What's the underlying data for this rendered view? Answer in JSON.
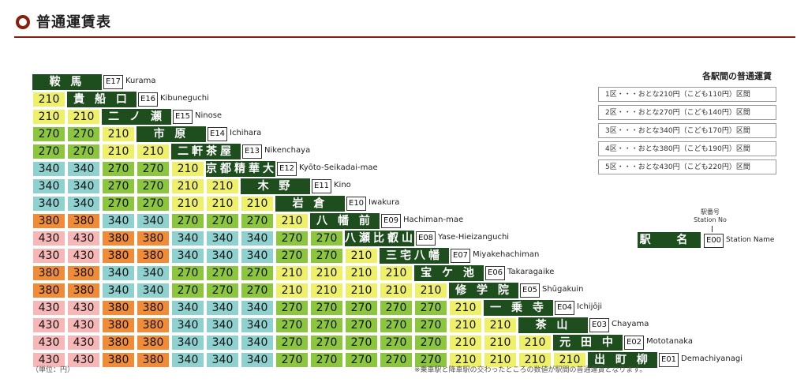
{
  "page": {
    "title": "普通運賃表"
  },
  "stations": [
    {
      "code": "E17",
      "name": "鞍 馬",
      "romaji": "Kurama"
    },
    {
      "code": "E16",
      "name": "貴 船 口",
      "romaji": "Kibuneguchi"
    },
    {
      "code": "E15",
      "name": "二 ノ 瀬",
      "romaji": "Ninose"
    },
    {
      "code": "E14",
      "name": "市 原",
      "romaji": "Ichihara"
    },
    {
      "code": "E13",
      "name": "二軒茶屋",
      "romaji": "Nikenchaya"
    },
    {
      "code": "E12",
      "name": "京都精華大前",
      "romaji": "Kyōto-Seikadai-mae"
    },
    {
      "code": "E11",
      "name": "木 野",
      "romaji": "Kino"
    },
    {
      "code": "E10",
      "name": "岩 倉",
      "romaji": "Iwakura"
    },
    {
      "code": "E09",
      "name": "八 幡 前",
      "romaji": "Hachiman-mae"
    },
    {
      "code": "E08",
      "name": "八瀬比叡山口",
      "romaji": "Yase-Hieizanguchi"
    },
    {
      "code": "E07",
      "name": "三宅八幡",
      "romaji": "Miyakehachiman"
    },
    {
      "code": "E06",
      "name": "宝 ケ 池",
      "romaji": "Takaragaike"
    },
    {
      "code": "E05",
      "name": "修 学 院",
      "romaji": "Shūgakuin"
    },
    {
      "code": "E04",
      "name": "一 乗 寺",
      "romaji": "Ichijōji"
    },
    {
      "code": "E03",
      "name": "茶 山",
      "romaji": "Chayama"
    },
    {
      "code": "E02",
      "name": "元 田 中",
      "romaji": "Mototanaka"
    },
    {
      "code": "E01",
      "name": "出 町 柳",
      "romaji": "Demachiyanagi"
    }
  ],
  "fares": [
    [],
    [
      210
    ],
    [
      210,
      210
    ],
    [
      270,
      270,
      210
    ],
    [
      270,
      270,
      210,
      210
    ],
    [
      340,
      340,
      270,
      270,
      210
    ],
    [
      340,
      340,
      270,
      270,
      210,
      210
    ],
    [
      340,
      340,
      270,
      270,
      210,
      210,
      210
    ],
    [
      380,
      380,
      340,
      340,
      270,
      270,
      270,
      210
    ],
    [
      430,
      430,
      380,
      380,
      340,
      340,
      340,
      270,
      270
    ],
    [
      430,
      430,
      380,
      380,
      340,
      340,
      340,
      270,
      270,
      210
    ],
    [
      380,
      380,
      340,
      340,
      270,
      270,
      270,
      210,
      210,
      210,
      210
    ],
    [
      380,
      380,
      340,
      340,
      270,
      270,
      270,
      210,
      210,
      210,
      210,
      210
    ],
    [
      430,
      430,
      380,
      380,
      340,
      340,
      340,
      270,
      270,
      270,
      270,
      270,
      210
    ],
    [
      430,
      430,
      380,
      380,
      340,
      340,
      340,
      270,
      270,
      270,
      270,
      270,
      210,
      210
    ],
    [
      430,
      430,
      380,
      380,
      340,
      340,
      340,
      270,
      270,
      270,
      270,
      270,
      210,
      210,
      210
    ],
    [
      430,
      430,
      380,
      380,
      340,
      340,
      340,
      270,
      270,
      270,
      270,
      270,
      210,
      210,
      210,
      210
    ]
  ],
  "zones": {
    "210": {
      "zone": 1,
      "color": "#eef06a"
    },
    "270": {
      "zone": 2,
      "color": "#8cc63f"
    },
    "340": {
      "zone": 3,
      "color": "#8fd1cf"
    },
    "380": {
      "zone": 4,
      "color": "#f08c38"
    },
    "430": {
      "zone": 5,
      "color": "#f7b7b7"
    }
  },
  "legend": {
    "title": "各駅間の普通運賃",
    "items": [
      {
        "label": "1区・・・おとな210円（こども110円）区間",
        "color": "#eef06a"
      },
      {
        "label": "2区・・・おとな270円（こども140円）区間",
        "color": "#8cc63f"
      },
      {
        "label": "3区・・・おとな340円（こども170円）区間",
        "color": "#8fd1cf"
      },
      {
        "label": "4区・・・おとな380円（こども190円）区間",
        "color": "#f08c38"
      },
      {
        "label": "5区・・・おとな430円（こども220円）区間",
        "color": "#f7b7b7"
      }
    ]
  },
  "key": {
    "number_label_ja": "駅番号",
    "number_label_en": "Station No",
    "name_label": "駅 名",
    "code_label": "E00",
    "station_name_label": "Station Name"
  },
  "footer": {
    "unit": "（単位：円）",
    "note": "※乗車駅と降車駅の交わったところの数値が駅間の普通運賃となります。"
  }
}
